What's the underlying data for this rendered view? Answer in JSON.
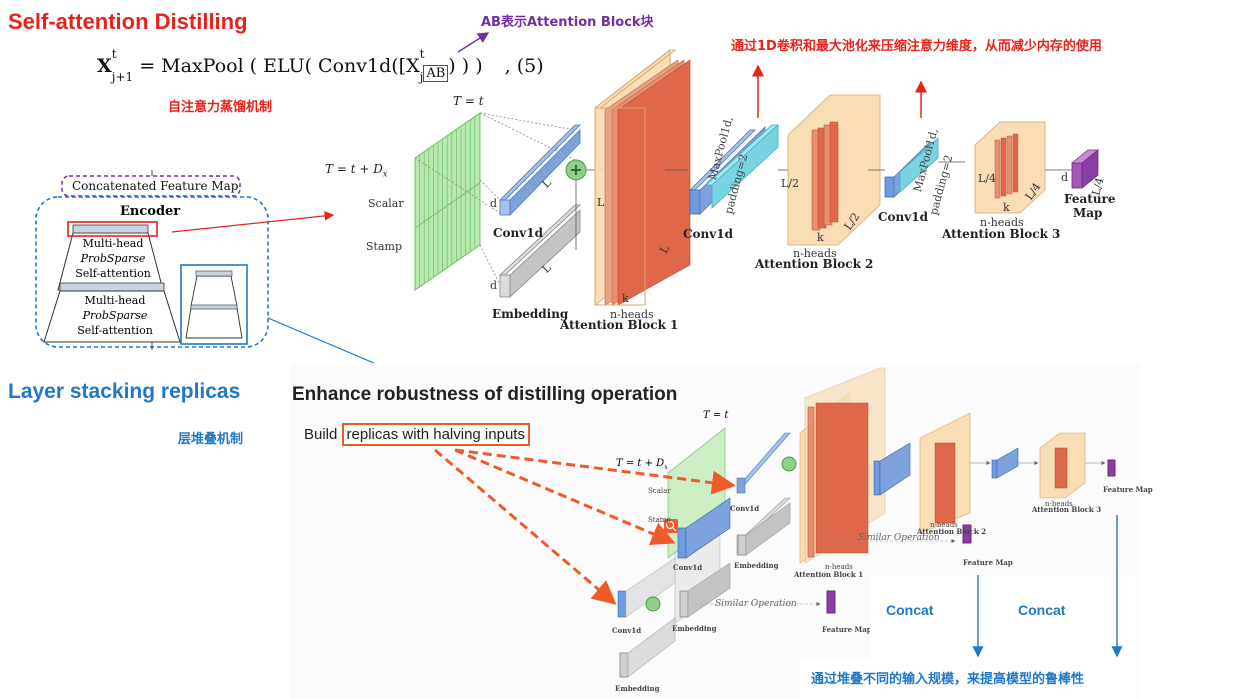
{
  "titles": {
    "self_attention": "Self-attention Distilling",
    "layer_stacking": "Layer stacking replicas"
  },
  "annotations": {
    "ab_note": "AB表示Attention Block块",
    "distill_note": "通过1D卷积和最大池化来压缩注意力维度，从而减少内存的使用",
    "self_attention_cn": "自注意力蒸馏机制",
    "stacking_cn": "层堆叠机制",
    "robustness_cn": "通过堆叠不同的输入规模，来提高模型的鲁棒性"
  },
  "formula": {
    "lhs_base": "X",
    "lhs_sup": "t",
    "lhs_sub": "j+1",
    "rhs_prefix": "= MaxPool ( ELU( Conv1d([X",
    "rhs_sup": "t",
    "rhs_sub": "j",
    "ab": "AB",
    "rhs_suffix": ") ) )",
    "number": ",   (5)"
  },
  "encoder": {
    "concat_label": "Concatenated Feature Map",
    "title": "Encoder",
    "block1": [
      "Multi-head",
      "ProbSparse",
      "Self-attention"
    ],
    "block2": [
      "Multi-head",
      "ProbSparse",
      "Self-attention"
    ]
  },
  "top_diagram": {
    "t_eq": "T = t",
    "t_eq_d": "T = t + D",
    "t_eq_d_sub": "x",
    "scalar": "Scalar",
    "stamp": "Stamp",
    "d": "d",
    "L": "L",
    "L2": "L/2",
    "L4": "L/4",
    "k": "k",
    "conv1d": "Conv1d",
    "embedding": "Embedding",
    "maxpool": "MaxPool1d,",
    "padding": "padding=2",
    "nheads": "n-heads",
    "ab1": "Attention Block 1",
    "ab2": "Attention Block 2",
    "ab3": "Attention Block 3",
    "feature": "Feature",
    "map": "Map"
  },
  "bottom_photo": {
    "heading": "Enhance robustness of distilling operation",
    "build_prefix": "Build ",
    "build_boxed": "replicas with halving inputs",
    "similar_op": "Similar Operation",
    "concat1": "Concat",
    "concat2": "Concat",
    "t_eq": "T = t",
    "t_eq_d": "T = t + D",
    "t_eq_d_sub": "x",
    "scalar": "Scalar",
    "stamp": "Stamp",
    "conv1d": "Conv1d",
    "embedding": "Embedding",
    "feature_map": "Feature Map",
    "ab1": "Attention Block 1",
    "ab2": "Attention Block 2",
    "ab3": "Attention Block 3",
    "nheads": "n-heads"
  },
  "colors": {
    "red": "#e8231b",
    "blue": "#1f78c8",
    "purple": "#7030a0",
    "green_block": "#b8eab0",
    "blue_block": "#6f9be0",
    "orange_bg": "#f9ddb5",
    "red_block": "#e0684a"
  }
}
